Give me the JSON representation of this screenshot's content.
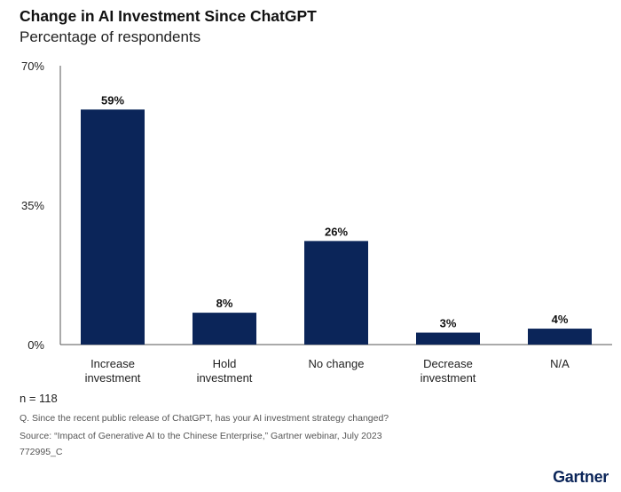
{
  "header": {
    "title": "Change in AI Investment Since ChatGPT",
    "subtitle": "Percentage of respondents"
  },
  "footer": {
    "n_label": "n = 118",
    "question": "Q. Since the recent public release of ChatGPT, has your AI investment strategy changed?",
    "source": "Source: “Impact of Generative AI to the Chinese Enterprise,” Gartner webinar, July 2023",
    "code": "772995_C",
    "logo": "Gartner"
  },
  "colors": {
    "bar": "#0b2559",
    "axis": "#555555",
    "logo": "#0b2559"
  },
  "chart_data": {
    "type": "bar",
    "title": "Change in AI Investment Since ChatGPT",
    "subtitle": "Percentage of respondents",
    "categories": [
      [
        "Increase",
        "investment"
      ],
      [
        "Hold",
        "investment"
      ],
      [
        "No change"
      ],
      [
        "Decrease",
        "investment"
      ],
      [
        "N/A"
      ]
    ],
    "values": [
      59,
      8,
      26,
      3,
      4
    ],
    "data_labels": [
      "59%",
      "8%",
      "26%",
      "3%",
      "4%"
    ],
    "y_ticks": [
      0,
      35,
      70
    ],
    "y_tick_labels": [
      "0%",
      "35%",
      "70%"
    ],
    "ylim": [
      0,
      70
    ],
    "grid": false,
    "legend": "none"
  }
}
